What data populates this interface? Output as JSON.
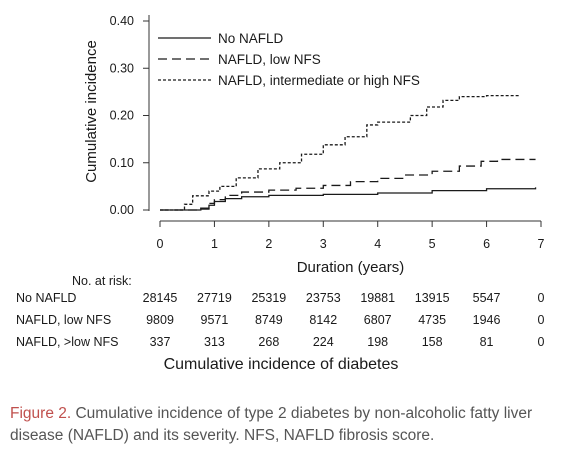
{
  "chart_data": {
    "type": "line",
    "xlabel": "Duration (years)",
    "ylabel": "Cumulative incidence",
    "xlim": [
      0,
      7
    ],
    "ylim": [
      0,
      0.4
    ],
    "x_ticks": [
      "0",
      "1",
      "2",
      "3",
      "4",
      "5",
      "6",
      "7"
    ],
    "y_ticks": [
      "0.00",
      "0.10",
      "0.20",
      "0.30",
      "0.40"
    ],
    "grid": false,
    "legend_position": "top-right",
    "series": [
      {
        "name": "No NAFLD",
        "style": "solid",
        "points": [
          [
            0,
            0
          ],
          [
            0.5,
            0
          ],
          [
            0.75,
            0.002
          ],
          [
            0.9,
            0.01
          ],
          [
            1.0,
            0.018
          ],
          [
            1.2,
            0.024
          ],
          [
            1.5,
            0.028
          ],
          [
            2,
            0.031
          ],
          [
            3,
            0.033
          ],
          [
            4,
            0.036
          ],
          [
            5,
            0.041
          ],
          [
            6,
            0.045
          ],
          [
            6.9,
            0.048
          ]
        ]
      },
      {
        "name": "NAFLD, low NFS",
        "style": "dashed",
        "points": [
          [
            0,
            0
          ],
          [
            0.5,
            0
          ],
          [
            0.7,
            0.004
          ],
          [
            0.9,
            0.014
          ],
          [
            1.0,
            0.022
          ],
          [
            1.2,
            0.031
          ],
          [
            1.5,
            0.038
          ],
          [
            2,
            0.042
          ],
          [
            2.5,
            0.046
          ],
          [
            3,
            0.052
          ],
          [
            3.5,
            0.06
          ],
          [
            4,
            0.067
          ],
          [
            4.5,
            0.074
          ],
          [
            5,
            0.082
          ],
          [
            5.5,
            0.093
          ],
          [
            5.9,
            0.103
          ],
          [
            6.2,
            0.107
          ],
          [
            6.9,
            0.107
          ]
        ]
      },
      {
        "name": "NAFLD, intermediate or high NFS",
        "style": "dotted",
        "points": [
          [
            0,
            0
          ],
          [
            0.35,
            0
          ],
          [
            0.45,
            0.012
          ],
          [
            0.6,
            0.03
          ],
          [
            0.9,
            0.04
          ],
          [
            1.1,
            0.05
          ],
          [
            1.4,
            0.068
          ],
          [
            1.8,
            0.087
          ],
          [
            2.2,
            0.1
          ],
          [
            2.6,
            0.118
          ],
          [
            3.0,
            0.138
          ],
          [
            3.4,
            0.155
          ],
          [
            3.8,
            0.18
          ],
          [
            4.0,
            0.186
          ],
          [
            4.4,
            0.186
          ],
          [
            4.6,
            0.2
          ],
          [
            4.9,
            0.218
          ],
          [
            5.2,
            0.232
          ],
          [
            5.5,
            0.24
          ],
          [
            6.0,
            0.242
          ],
          [
            6.6,
            0.242
          ]
        ]
      }
    ]
  },
  "risk_table": {
    "header": "No. at risk:",
    "rows": [
      {
        "label": "No NAFLD",
        "values": [
          "28145",
          "27719",
          "25319",
          "23753",
          "19881",
          "13915",
          "5547",
          "0"
        ]
      },
      {
        "label": "NAFLD, low NFS",
        "values": [
          "9809",
          "9571",
          "8749",
          "8142",
          "6807",
          "4735",
          "1946",
          "0"
        ]
      },
      {
        "label": "NAFLD, >low NFS",
        "values": [
          "337",
          "313",
          "268",
          "224",
          "198",
          "158",
          "81",
          "0"
        ]
      }
    ]
  },
  "subtitle": "Cumulative incidence of diabetes",
  "caption": {
    "label": "Figure 2.",
    "text": " Cumulative incidence of type 2 diabetes by non-alcoholic fatty liver disease (NAFLD) and its severity. NFS, NAFLD fibrosis score."
  },
  "colors": {
    "line": "#1a1a1a",
    "axis": "#333333",
    "caption_label": "#c0504d",
    "caption_text": "#555555"
  }
}
